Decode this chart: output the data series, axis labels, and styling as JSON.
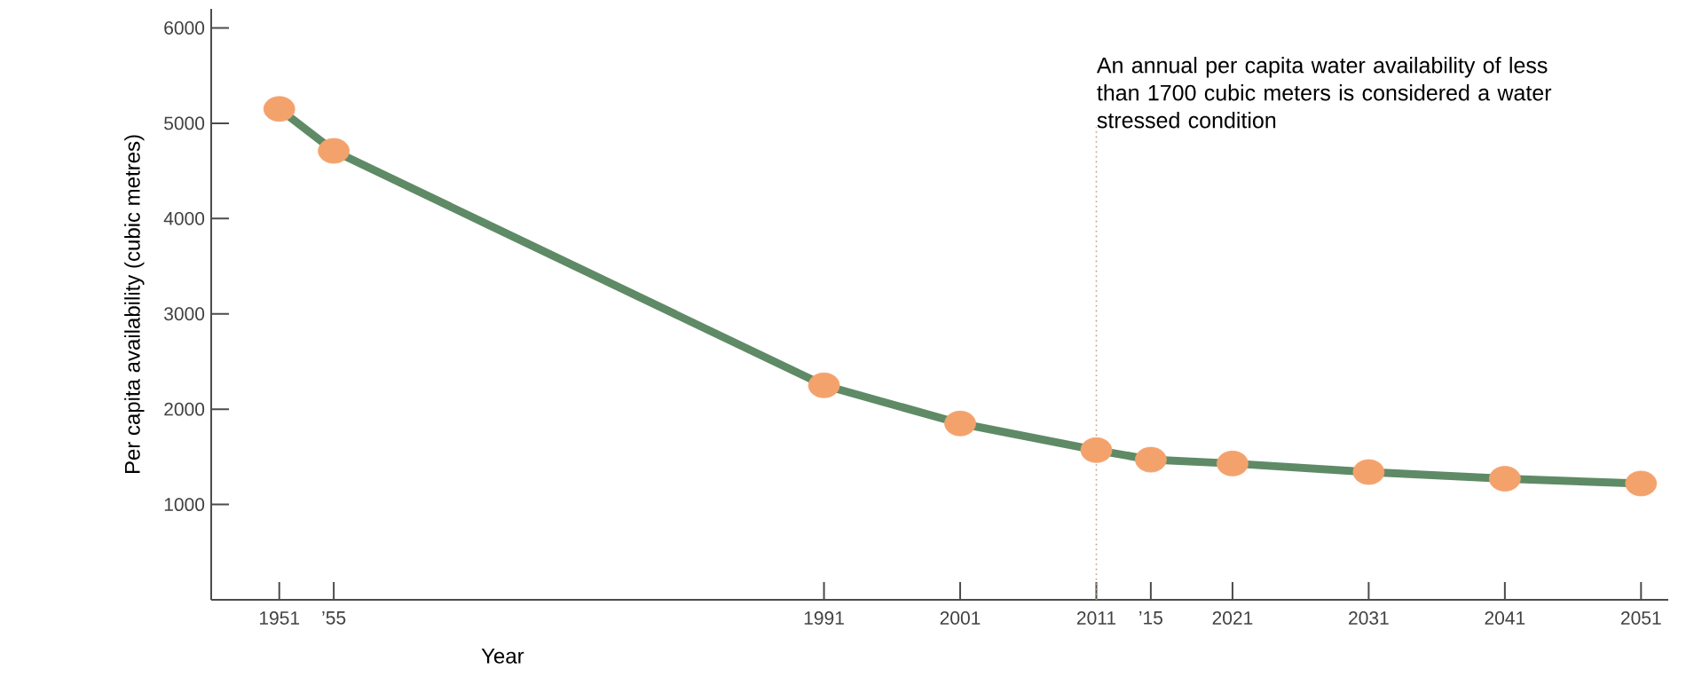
{
  "chart_data": {
    "type": "line",
    "xlabel": "Year",
    "ylabel": "Per capita availability (cubic metres)",
    "x": [
      1951,
      1955,
      1991,
      2001,
      2011,
      2015,
      2021,
      2031,
      2041,
      2051
    ],
    "series": [
      {
        "color": "#5f8a66",
        "colors": [
          "#f4a26c",
          "#f4a26c",
          "#f4a26c",
          "#f4a26c",
          "#f4a26c",
          "#f4a26c",
          "#f4a26c",
          "#f4a26c",
          "#f4a26c",
          "#f4a26c"
        ],
        "values": [
          5150,
          4710,
          2250,
          1850,
          1570,
          1470,
          1430,
          1340,
          1270,
          1220
        ]
      }
    ],
    "marker": "circle",
    "xlim": [
      1946,
      2053
    ],
    "ylim": [
      0,
      6200
    ],
    "xticks": [
      1951,
      {
        "value": 1955,
        "label": "’55"
      },
      1991,
      2001,
      2011,
      {
        "value": 2015,
        "label": "’15"
      },
      2021,
      2031,
      2041,
      2051
    ],
    "yticks": [
      1000,
      2000,
      3000,
      4000,
      5000,
      6000
    ],
    "ref_lines": [
      {
        "axis": "x",
        "value": 2011,
        "line_style": "dotted",
        "color": "#c0a080"
      }
    ],
    "annotations": [
      "An annual per capita water availability of less than 1700 cubic meters is considered a water stressed condition"
    ],
    "grid": false
  }
}
